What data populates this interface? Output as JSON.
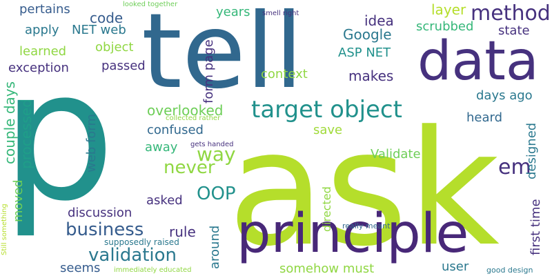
{
  "palette": {
    "dark_purple": "#46317e",
    "deep_purple": "#482878",
    "indigo": "#3e4a89",
    "steel_blue": "#31688e",
    "blue": "#365c8d",
    "teal_blue": "#2a788e",
    "teal": "#21918c",
    "sea_green": "#1f9e89",
    "green": "#35b779",
    "light_green": "#6ece58",
    "lime": "#90d743",
    "yellow_green": "#b5de2b",
    "pale_green": "#a0da39"
  },
  "words": [
    {
      "text": "p",
      "color": "teal"
    },
    {
      "text": "ask",
      "color": "yellow_green"
    },
    {
      "text": "tell",
      "color": "steel_blue"
    },
    {
      "text": "data",
      "color": "dark_purple"
    },
    {
      "text": "principle",
      "color": "deep_purple"
    },
    {
      "text": "target object",
      "color": "teal"
    },
    {
      "text": "method",
      "color": "dark_purple"
    },
    {
      "text": "business",
      "color": "blue"
    },
    {
      "text": "validation",
      "color": "teal_blue"
    },
    {
      "text": "never",
      "color": "lime"
    },
    {
      "text": "way",
      "color": "lime"
    },
    {
      "text": "OOP",
      "color": "teal"
    },
    {
      "text": "em",
      "color": "dark_purple"
    },
    {
      "text": "rule",
      "color": "dark_purple"
    },
    {
      "text": "Google",
      "color": "teal_blue"
    },
    {
      "text": "code",
      "color": "blue"
    },
    {
      "text": "idea",
      "color": "dark_purple"
    },
    {
      "text": "layer",
      "color": "yellow_green"
    },
    {
      "text": "state",
      "color": "dark_purple"
    },
    {
      "text": "scrubbed",
      "color": "green"
    },
    {
      "text": "ASP NET",
      "color": "teal"
    },
    {
      "text": "makes",
      "color": "dark_purple"
    },
    {
      "text": "context",
      "color": "lime"
    },
    {
      "text": "years",
      "color": "green"
    },
    {
      "text": "object",
      "color": "lime"
    },
    {
      "text": "apply",
      "color": "teal_blue"
    },
    {
      "text": "NET web",
      "color": "teal_blue"
    },
    {
      "text": "pertains",
      "color": "blue"
    },
    {
      "text": "learned",
      "color": "lime"
    },
    {
      "text": "exception",
      "color": "dark_purple"
    },
    {
      "text": "passed",
      "color": "dark_purple"
    },
    {
      "text": "couple days",
      "color": "green"
    },
    {
      "text": "processed",
      "color": "sea_green"
    },
    {
      "text": "moved",
      "color": "light_green"
    },
    {
      "text": "discussion",
      "color": "dark_purple"
    },
    {
      "text": "overlooked",
      "color": "light_green"
    },
    {
      "text": "confused",
      "color": "steel_blue"
    },
    {
      "text": "away",
      "color": "green"
    },
    {
      "text": "web form",
      "color": "teal_blue"
    },
    {
      "text": "form page",
      "color": "dark_purple"
    },
    {
      "text": "asked",
      "color": "dark_purple"
    },
    {
      "text": "seems",
      "color": "blue"
    },
    {
      "text": "around",
      "color": "teal_blue"
    },
    {
      "text": "save",
      "color": "pale_green"
    },
    {
      "text": "days ago",
      "color": "teal_blue"
    },
    {
      "text": "heard",
      "color": "steel_blue"
    },
    {
      "text": "Validate",
      "color": "light_green"
    },
    {
      "text": "designed",
      "color": "teal_blue"
    },
    {
      "text": "first time",
      "color": "dark_purple"
    },
    {
      "text": "directed",
      "color": "lime"
    },
    {
      "text": "somehow must",
      "color": "lime"
    },
    {
      "text": "user",
      "color": "teal_blue"
    },
    {
      "text": "supposedly raised",
      "color": "teal_blue"
    },
    {
      "text": "really meant",
      "color": "steel_blue"
    },
    {
      "text": "good design",
      "color": "teal_blue"
    },
    {
      "text": "immediately educated",
      "color": "lime"
    },
    {
      "text": "Still something",
      "color": "yellow_green"
    },
    {
      "text": "collected rather",
      "color": "lime"
    },
    {
      "text": "gets handed",
      "color": "dark_purple"
    },
    {
      "text": "smell right",
      "color": "dark_purple"
    },
    {
      "text": "looked together",
      "color": "light_green"
    }
  ]
}
